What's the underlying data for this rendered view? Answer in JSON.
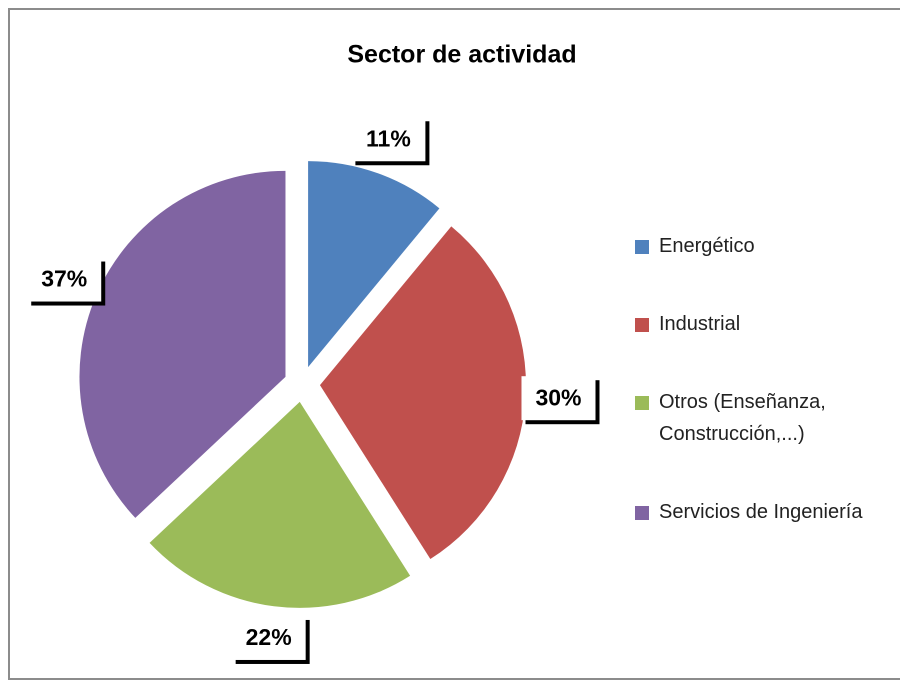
{
  "chart_data": {
    "type": "pie",
    "title": "Sector de actividad",
    "categories": [
      "Energético",
      "Industrial",
      "Otros (Enseñanza, Construcción,...)",
      "Servicios de Ingeniería"
    ],
    "values": [
      11,
      30,
      22,
      37
    ],
    "value_labels": [
      "11%",
      "30%",
      "22%",
      "37%"
    ],
    "colors": [
      "#4f81bd",
      "#c0504d",
      "#9bbb59",
      "#8064a2"
    ],
    "legend": "right"
  }
}
